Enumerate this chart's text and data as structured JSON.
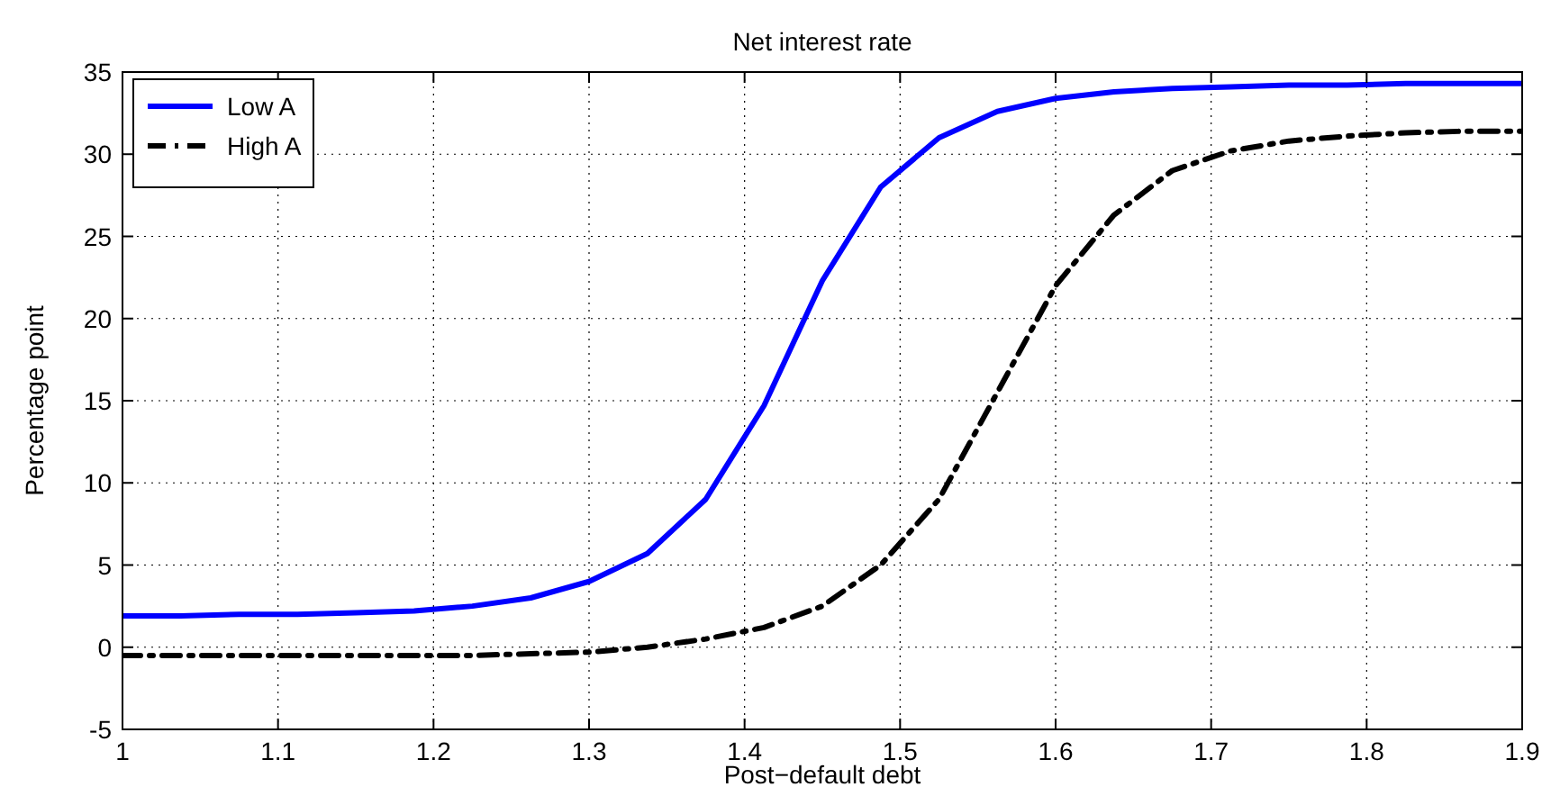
{
  "chart_data": {
    "type": "line",
    "title": "Net interest rate",
    "xlabel": "Post−default debt",
    "ylabel": "Percentage point",
    "x": [
      1,
      1.0375,
      1.075,
      1.1125,
      1.15,
      1.1875,
      1.225,
      1.2625,
      1.3,
      1.3375,
      1.375,
      1.4125,
      1.45,
      1.4875,
      1.525,
      1.5625,
      1.6,
      1.6375,
      1.675,
      1.7125,
      1.75,
      1.7875,
      1.825,
      1.8625,
      1.9
    ],
    "series": [
      {
        "name": "Low A",
        "color": "#0000ff",
        "line_style": "solid",
        "values": [
          1.9,
          1.9,
          2,
          2,
          2.1,
          2.2,
          2.5,
          3,
          4,
          5.7,
          9,
          14.7,
          22.3,
          28,
          31,
          32.6,
          33.4,
          33.8,
          34,
          34.1,
          34.2,
          34.2,
          34.3,
          34.3,
          34.3
        ]
      },
      {
        "name": "High A",
        "color": "#000000",
        "line_style": "dashdot",
        "values": [
          -0.5,
          -0.5,
          -0.5,
          -0.5,
          -0.5,
          -0.5,
          -0.5,
          -0.4,
          -0.3,
          0,
          0.5,
          1.2,
          2.5,
          5,
          9,
          15.5,
          22,
          26.3,
          29,
          30.2,
          30.8,
          31.1,
          31.3,
          31.4,
          31.4
        ]
      }
    ],
    "xlim": [
      1,
      1.9
    ],
    "xticks": [
      1,
      1.1,
      1.2,
      1.3,
      1.4,
      1.5,
      1.6,
      1.7,
      1.8,
      1.9
    ],
    "ylim": [
      -5,
      35
    ],
    "yticks": [
      -5,
      0,
      5,
      10,
      15,
      20,
      25,
      30,
      35
    ],
    "grid": true,
    "legend": "top left"
  }
}
